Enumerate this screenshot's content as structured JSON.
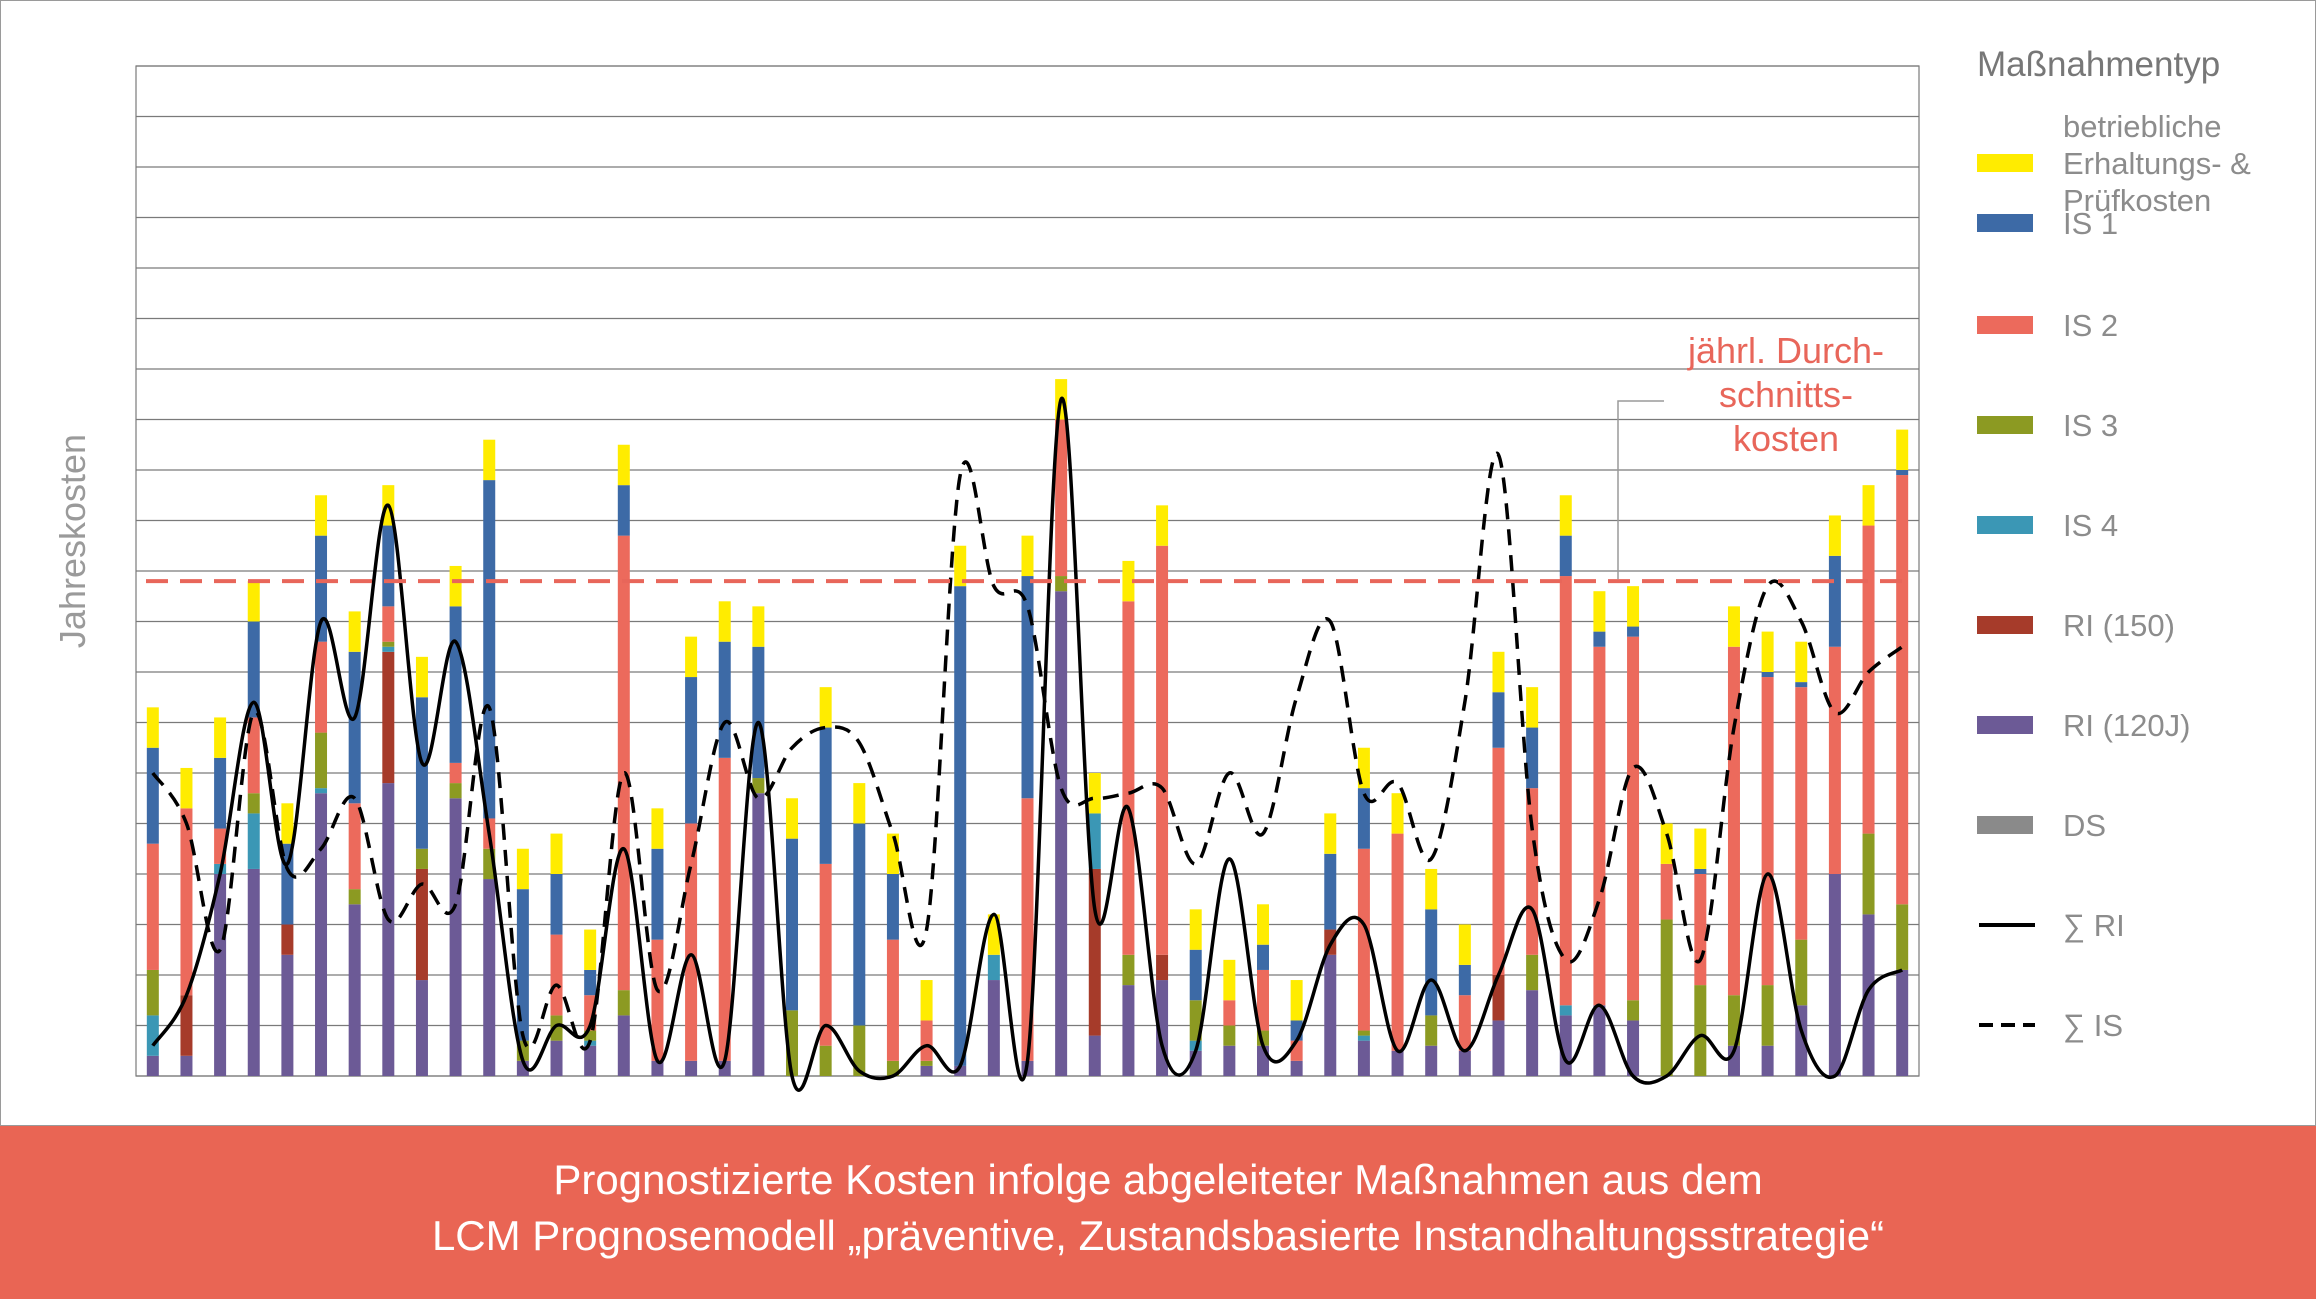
{
  "chart_data": {
    "type": "bar",
    "ylabel": "Jahreskosten",
    "ylim": [
      0,
      20
    ],
    "grid": true,
    "legend_position": "right",
    "legend_title": "Maßnahmentyp",
    "x": [
      1,
      2,
      3,
      4,
      5,
      6,
      7,
      8,
      9,
      10,
      11,
      12,
      13,
      14,
      15,
      16,
      17,
      18,
      19,
      20,
      21,
      22,
      23,
      24,
      25,
      26,
      27,
      28,
      29,
      30,
      31,
      32,
      33,
      34,
      35,
      36,
      37,
      38,
      39,
      40,
      41,
      42,
      43,
      44,
      45,
      46,
      47,
      48,
      49,
      50,
      51,
      52,
      53
    ],
    "stacked_series": [
      {
        "name": "RI (120J)",
        "color": "#6c5a96",
        "values": [
          0.4,
          0.4,
          4.0,
          4.1,
          2.4,
          5.6,
          3.4,
          5.8,
          1.9,
          5.5,
          3.9,
          0.3,
          0.7,
          0.6,
          1.2,
          0.3,
          0.3,
          0.3,
          5.6,
          0,
          0,
          0,
          0,
          0.2,
          0.2,
          1.9,
          0.3,
          9.6,
          0.8,
          1.8,
          1.9,
          0.5,
          0.6,
          0.6,
          0.3,
          2.4,
          0.7,
          0.5,
          0.6,
          0.5,
          1.1,
          1.7,
          1.2,
          1.4,
          1.1,
          0,
          0,
          0.6,
          0.6,
          1.4,
          4.0,
          3.2,
          2.1
        ]
      },
      {
        "name": "RI (150)",
        "color": "#a63b2a",
        "values": [
          0,
          1.2,
          0,
          0,
          0.6,
          0,
          0,
          2.6,
          2.2,
          0,
          0,
          0,
          0,
          0,
          0,
          0,
          0,
          0,
          0,
          0,
          0,
          0,
          0,
          0,
          0,
          0,
          0,
          0,
          3.3,
          0,
          0.5,
          0,
          0,
          0,
          0,
          0.5,
          0,
          0,
          0,
          0,
          0.9,
          0,
          0,
          0,
          0,
          0,
          0,
          0,
          0,
          0,
          0,
          0,
          0
        ]
      },
      {
        "name": "IS 4",
        "color": "#3b97b5",
        "values": [
          0.8,
          0,
          0.2,
          1.1,
          0,
          0.1,
          0,
          0.1,
          0,
          0,
          0,
          0,
          0,
          0.1,
          0,
          0,
          0,
          0,
          0,
          0,
          0,
          0,
          0,
          0,
          0,
          0.5,
          0,
          0,
          1.1,
          0,
          0,
          0.2,
          0,
          0,
          0,
          0,
          0.1,
          0,
          0,
          0,
          0,
          0,
          0.2,
          0,
          0,
          0,
          0,
          0,
          0,
          0,
          0,
          0,
          0
        ]
      },
      {
        "name": "IS 3",
        "color": "#8c9a22",
        "values": [
          0.9,
          0,
          0,
          0.4,
          0,
          1.1,
          0.3,
          0.1,
          0.4,
          0.3,
          0.6,
          0.4,
          0.5,
          0.2,
          0.5,
          0,
          0,
          0,
          0.3,
          1.3,
          0.6,
          1.0,
          0.3,
          0.1,
          0,
          0,
          0,
          0.3,
          0,
          0.6,
          0,
          0.8,
          0.4,
          0.3,
          0,
          0,
          0.1,
          0,
          0.6,
          0,
          0,
          0.7,
          0,
          0,
          0.4,
          3.1,
          1.8,
          1.0,
          1.2,
          1.3,
          0,
          1.6,
          1.3
        ]
      },
      {
        "name": "IS 2",
        "color": "#ec6a5c",
        "values": [
          2.5,
          3.7,
          0.7,
          1.5,
          0,
          1.8,
          1.7,
          0.7,
          0,
          0.4,
          0.6,
          0,
          1.6,
          0.7,
          9.0,
          2.4,
          4.7,
          6.0,
          0,
          0,
          3.6,
          0,
          2.4,
          0.8,
          0,
          0,
          5.2,
          3.1,
          0,
          7.0,
          8.1,
          0,
          0.5,
          1.2,
          0.4,
          0,
          3.6,
          4.3,
          0,
          1.1,
          4.5,
          3.3,
          8.5,
          7.1,
          7.2,
          1.1,
          2.2,
          6.9,
          6.1,
          5.0,
          4.5,
          6.1,
          8.5
        ]
      },
      {
        "name": "IS 1",
        "color": "#3d6aa6",
        "values": [
          1.9,
          0,
          1.4,
          1.9,
          1.6,
          2.1,
          3.0,
          1.6,
          3.0,
          3.1,
          6.7,
          3.0,
          1.2,
          0.5,
          1.0,
          1.8,
          2.9,
          2.3,
          2.6,
          3.4,
          2.7,
          4.0,
          1.3,
          0,
          9.5,
          0,
          4.4,
          0,
          0,
          0,
          0,
          1.0,
          0,
          0.5,
          0.4,
          1.5,
          1.2,
          0,
          2.1,
          0.6,
          1.1,
          1.2,
          0.8,
          0.3,
          0.2,
          0,
          0.1,
          0,
          0.1,
          0.1,
          1.8,
          0,
          0.1
        ]
      },
      {
        "name": "betriebliche Erhaltungs- & Prüfkosten",
        "color": "#ffec00",
        "values": [
          0.8,
          0.8,
          0.8,
          0.8,
          0.8,
          0.8,
          0.8,
          0.8,
          0.8,
          0.8,
          0.8,
          0.8,
          0.8,
          0.8,
          0.8,
          0.8,
          0.8,
          0.8,
          0.8,
          0.8,
          0.8,
          0.8,
          0.8,
          0.8,
          0.8,
          0.8,
          0.8,
          0.8,
          0.8,
          0.8,
          0.8,
          0.8,
          0.8,
          0.8,
          0.8,
          0.8,
          0.8,
          0.8,
          0.8,
          0.8,
          0.8,
          0.8,
          0.8,
          0.8,
          0.8,
          0.8,
          0.8,
          0.8,
          0.8,
          0.8,
          0.8,
          0.8,
          0.8
        ]
      },
      {
        "name": "DS",
        "color": "#8a8a8a",
        "values": [
          0,
          0,
          0,
          0,
          0,
          0,
          0,
          0,
          0,
          0,
          0,
          0,
          0,
          0,
          0,
          0,
          0,
          0,
          0,
          0,
          0,
          0,
          0,
          0,
          0,
          0,
          0,
          0,
          0,
          0,
          0,
          0,
          0,
          0,
          0,
          0,
          0,
          0,
          0,
          0,
          0,
          0,
          0,
          0,
          0,
          0,
          0,
          0,
          0,
          0,
          0,
          0,
          0
        ]
      }
    ],
    "line_series": [
      {
        "name": "∑ RI",
        "style": "solid",
        "color": "#000000",
        "values": [
          0.6,
          1.6,
          4.0,
          7.4,
          4.2,
          9.0,
          7.1,
          11.3,
          6.2,
          8.6,
          4.8,
          0.3,
          1.0,
          1.0,
          4.5,
          0.3,
          2.4,
          0.3,
          7.0,
          0,
          1.0,
          0.1,
          0,
          0.6,
          0.2,
          3.2,
          0.3,
          13.4,
          3.3,
          5.3,
          0.6,
          0.5,
          4.3,
          0.6,
          0.7,
          2.6,
          3.0,
          0.5,
          1.9,
          0.5,
          2.0,
          3.3,
          0.3,
          1.4,
          0,
          0,
          0.8,
          0.5,
          4.0,
          0.9,
          0,
          1.7,
          2.1
        ]
      },
      {
        "name": "∑ IS",
        "style": "dashed",
        "color": "#000000",
        "values": [
          6.0,
          5.0,
          2.5,
          7.2,
          4.1,
          4.5,
          5.5,
          3.1,
          3.8,
          3.4,
          7.3,
          0.8,
          1.8,
          0.7,
          6.0,
          1.7,
          4.2,
          7.0,
          5.5,
          6.5,
          6.9,
          6.6,
          4.8,
          2.9,
          11.9,
          9.7,
          9.3,
          5.7,
          5.5,
          5.6,
          5.7,
          4.2,
          6.0,
          4.8,
          7.5,
          9.0,
          5.6,
          5.8,
          4.3,
          7.4,
          12.3,
          4.9,
          2.3,
          3.5,
          6.1,
          4.8,
          2.3,
          6.9,
          9.7,
          9.0,
          7.2,
          8.0,
          8.5
        ]
      }
    ],
    "average_line": {
      "value": 9.8,
      "label_lines": [
        "jährl. Durch-",
        "schnitts-",
        "kosten"
      ],
      "color": "#e8665a"
    }
  },
  "legend": {
    "title": "Maßnahmentyp",
    "items": [
      {
        "label_lines": [
          "betriebliche",
          "Erhaltungs- &",
          "Prüfkosten"
        ],
        "color": "#ffec00",
        "kind": "swatch"
      },
      {
        "label_lines": [
          "IS 1"
        ],
        "color": "#3d6aa6",
        "kind": "swatch"
      },
      {
        "label_lines": [
          "IS 2"
        ],
        "color": "#ec6a5c",
        "kind": "swatch"
      },
      {
        "label_lines": [
          "IS 3"
        ],
        "color": "#8c9a22",
        "kind": "swatch"
      },
      {
        "label_lines": [
          "IS 4"
        ],
        "color": "#3b97b5",
        "kind": "swatch"
      },
      {
        "label_lines": [
          "RI (150)"
        ],
        "color": "#a63b2a",
        "kind": "swatch"
      },
      {
        "label_lines": [
          "RI (120J)"
        ],
        "color": "#6c5a96",
        "kind": "swatch"
      },
      {
        "label_lines": [
          "DS"
        ],
        "color": "#8a8a8a",
        "kind": "swatch"
      },
      {
        "label_lines": [
          "∑ RI"
        ],
        "color": "#000000",
        "kind": "solid-line"
      },
      {
        "label_lines": [
          "∑ IS"
        ],
        "color": "#000000",
        "kind": "dashed-line"
      }
    ]
  },
  "footer": {
    "line1": "Prognostizierte Kosten infolge abgeleiteter Maßnahmen aus dem",
    "line2": "LCM Prognosemodell „präventive, Zustandsbasierte Instandhaltungsstrategie“",
    "background": "#e96554"
  }
}
